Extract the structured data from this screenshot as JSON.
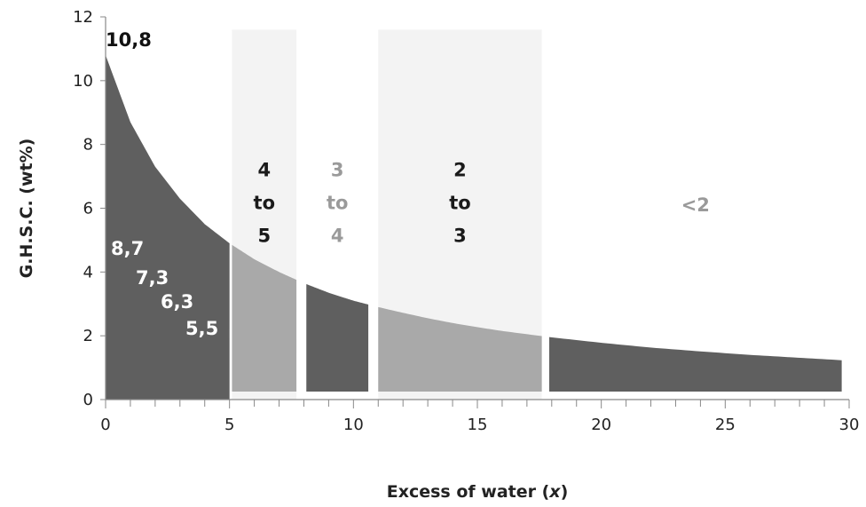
{
  "chart_data": {
    "type": "area",
    "xlabel": "Excess of water (",
    "xlabel_var": "x",
    "xlabel_close": ")",
    "ylabel": "G.H.S.C. (wt%)",
    "xlim": [
      0,
      30
    ],
    "ylim": [
      0,
      12
    ],
    "x_ticks": [
      "0",
      "5",
      "10",
      "15",
      "20",
      "25",
      "30"
    ],
    "y_ticks": [
      "0",
      "2",
      "4",
      "6",
      "8",
      "10",
      "12"
    ],
    "curve": {
      "x": [
        0,
        1,
        2,
        3,
        4,
        5,
        6,
        7,
        8,
        9,
        10,
        11,
        12,
        13,
        14,
        15,
        16,
        17,
        18,
        20,
        22,
        24,
        26,
        28,
        30
      ],
      "y": [
        10.8,
        8.7,
        7.3,
        6.3,
        5.5,
        4.9,
        4.4,
        4.0,
        3.65,
        3.35,
        3.1,
        2.9,
        2.72,
        2.55,
        2.4,
        2.27,
        2.15,
        2.05,
        1.95,
        1.78,
        1.63,
        1.51,
        1.4,
        1.31,
        1.22
      ]
    },
    "segments": [
      {
        "x_start": 0,
        "x_end": 5,
        "color": "#5f5f5f"
      },
      {
        "x_start": 5.1,
        "x_end": 7.7,
        "color": "#a9a9a9"
      },
      {
        "x_start": 8.1,
        "x_end": 10.6,
        "color": "#5f5f5f"
      },
      {
        "x_start": 11,
        "x_end": 17.6,
        "color": "#a9a9a9"
      },
      {
        "x_start": 17.9,
        "x_end": 29.7,
        "color": "#5f5f5f"
      }
    ],
    "bands": [
      {
        "x_start": 5.1,
        "x_end": 7.7,
        "color": "#f3f3f3"
      },
      {
        "x_start": 11,
        "x_end": 17.6,
        "color": "#f3f3f3"
      }
    ],
    "band_labels": [
      {
        "lines": [
          "4",
          "to",
          "5"
        ],
        "x": 6.4,
        "color": "#1a1a1a"
      },
      {
        "lines": [
          "3",
          "to",
          "4"
        ],
        "x": 9.35,
        "color": "#9a9a9a"
      },
      {
        "lines": [
          "2",
          "to",
          "3"
        ],
        "x": 14.3,
        "color": "#1a1a1a"
      },
      {
        "lines": [
          "<2"
        ],
        "x": 23.8,
        "color": "#9a9a9a"
      }
    ],
    "point_labels": [
      {
        "text": "10,8",
        "x": 0,
        "y": 10.8,
        "color": "#111111"
      },
      {
        "text": "8,7",
        "x": 1,
        "y": 8.7,
        "color": "#ffffff"
      },
      {
        "text": "7,3",
        "x": 2,
        "y": 7.3,
        "color": "#ffffff"
      },
      {
        "text": "6,3",
        "x": 3,
        "y": 6.3,
        "color": "#ffffff"
      },
      {
        "text": "5,5",
        "x": 4,
        "y": 5.5,
        "color": "#ffffff"
      }
    ],
    "grid": false,
    "legend": "none"
  }
}
